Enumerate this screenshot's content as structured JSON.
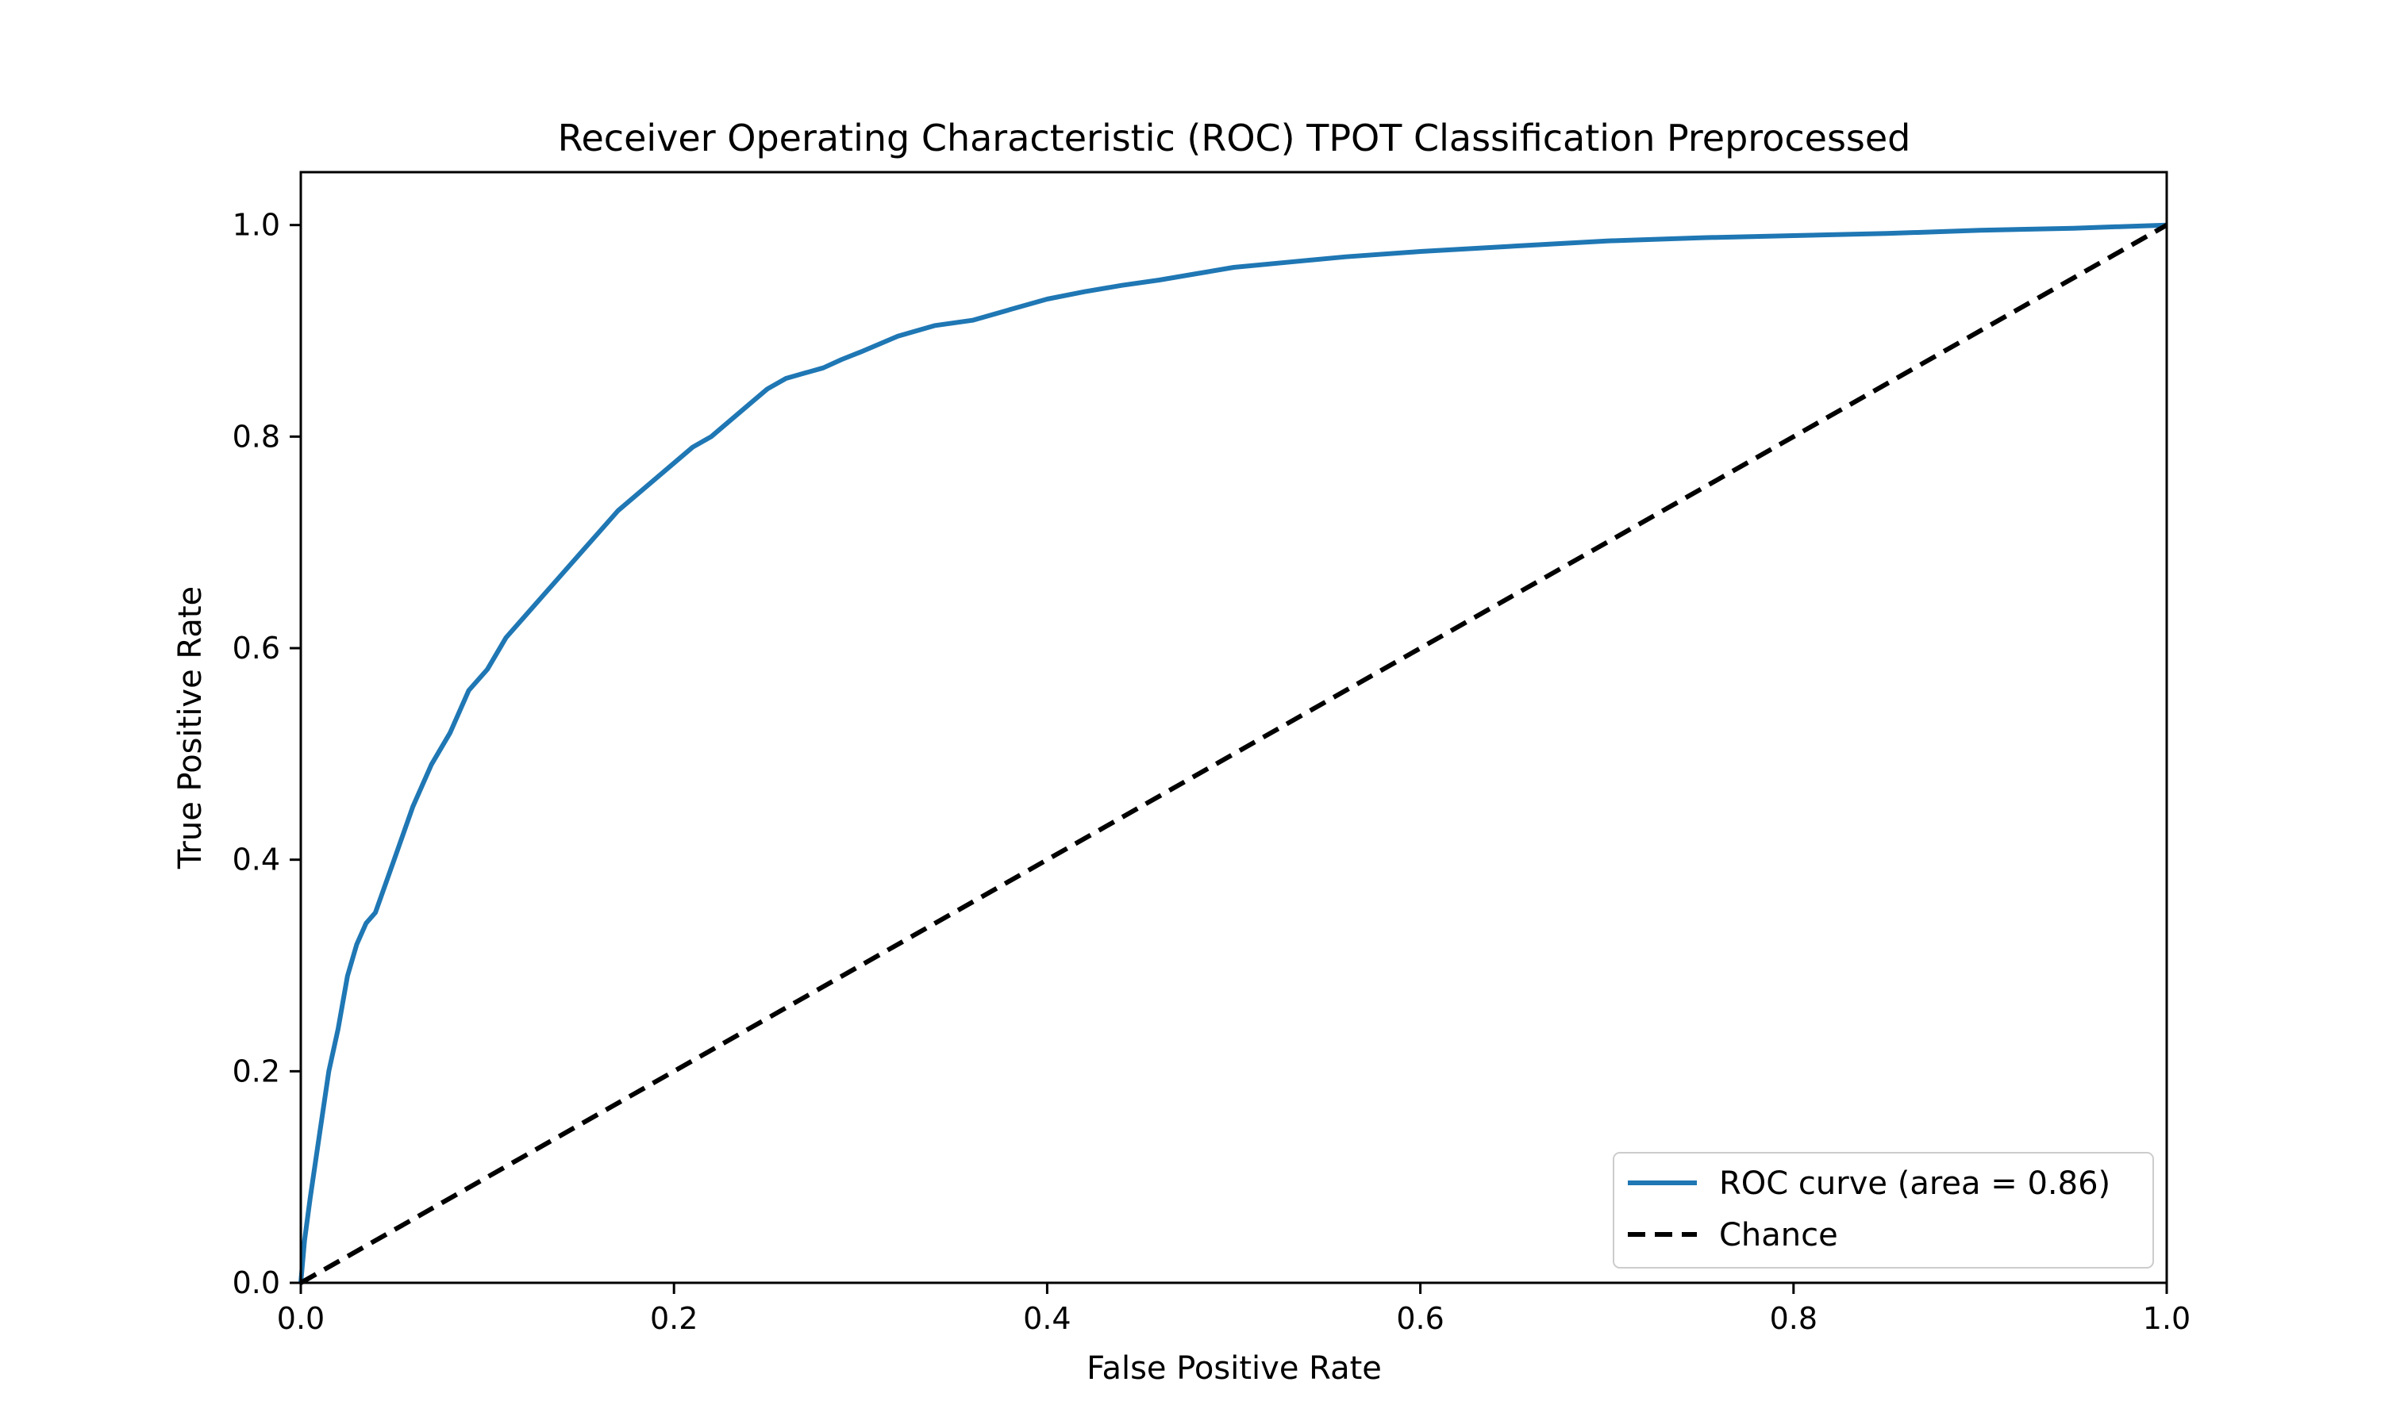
{
  "chart_data": {
    "type": "line",
    "title": "Receiver Operating Characteristic (ROC) TPOT Classification Preprocessed",
    "xlabel": "False Positive Rate",
    "ylabel": "True Positive Rate",
    "xlim": [
      0.0,
      1.0
    ],
    "ylim": [
      0.0,
      1.05
    ],
    "x_ticks": [
      "0.0",
      "0.2",
      "0.4",
      "0.6",
      "0.8",
      "1.0"
    ],
    "y_ticks": [
      "0.0",
      "0.2",
      "0.4",
      "0.6",
      "0.8",
      "1.0"
    ],
    "grid": false,
    "legend_position": "lower right",
    "series": [
      {
        "name": "ROC curve (area = 0.86)",
        "color": "#1f77b4",
        "style": "solid",
        "x": [
          0.0,
          0.002,
          0.005,
          0.01,
          0.015,
          0.02,
          0.025,
          0.03,
          0.035,
          0.04,
          0.05,
          0.06,
          0.07,
          0.08,
          0.09,
          0.1,
          0.11,
          0.12,
          0.13,
          0.14,
          0.15,
          0.16,
          0.17,
          0.18,
          0.19,
          0.2,
          0.21,
          0.22,
          0.23,
          0.24,
          0.25,
          0.26,
          0.27,
          0.28,
          0.29,
          0.3,
          0.32,
          0.34,
          0.36,
          0.38,
          0.4,
          0.42,
          0.44,
          0.46,
          0.48,
          0.5,
          0.53,
          0.56,
          0.6,
          0.65,
          0.7,
          0.75,
          0.8,
          0.85,
          0.9,
          0.95,
          1.0
        ],
        "y": [
          0.0,
          0.04,
          0.08,
          0.14,
          0.2,
          0.24,
          0.29,
          0.32,
          0.34,
          0.35,
          0.4,
          0.45,
          0.49,
          0.52,
          0.56,
          0.58,
          0.61,
          0.63,
          0.65,
          0.67,
          0.69,
          0.71,
          0.73,
          0.745,
          0.76,
          0.775,
          0.79,
          0.8,
          0.815,
          0.83,
          0.845,
          0.855,
          0.86,
          0.865,
          0.873,
          0.88,
          0.895,
          0.905,
          0.91,
          0.92,
          0.93,
          0.937,
          0.943,
          0.948,
          0.954,
          0.96,
          0.965,
          0.97,
          0.975,
          0.98,
          0.985,
          0.988,
          0.99,
          0.992,
          0.995,
          0.997,
          1.0
        ]
      },
      {
        "name": "Chance",
        "color": "#000000",
        "style": "dashed",
        "x": [
          0.0,
          1.0
        ],
        "y": [
          0.0,
          1.0
        ]
      }
    ]
  }
}
